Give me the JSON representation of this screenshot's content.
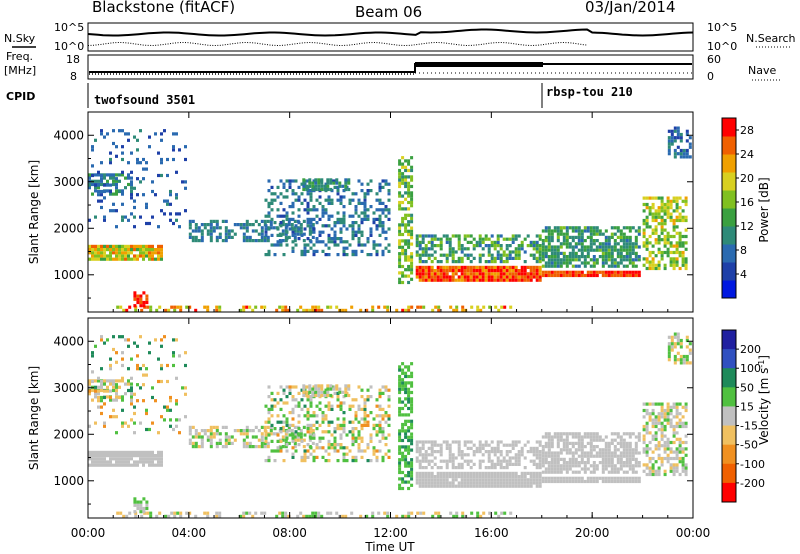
{
  "header": {
    "title": "Blackstone (fitACF)",
    "beam": "Beam 06",
    "date": "03/Jan/2014"
  },
  "noise_panel": {
    "left_label": "N.Sky",
    "right_label": "N.Search",
    "left_ticks": [
      "10^5",
      "10^0"
    ],
    "right_ticks": [
      "10^5",
      "10^0"
    ]
  },
  "freq_panel": {
    "left_label_1": "Freq.",
    "left_label_2": "[MHz]",
    "right_label": "Nave",
    "left_ticks": [
      "18",
      "8"
    ],
    "right_ticks": [
      "60",
      "0"
    ]
  },
  "cpid_panel": {
    "label": "CPID",
    "modes": [
      {
        "name": "twofsound 3501",
        "start_hour": 0
      },
      {
        "name": "rbsp-tou 210",
        "start_hour": 18
      }
    ]
  },
  "x_axis": {
    "label": "Time UT",
    "ticks": [
      "00:00",
      "04:00",
      "08:00",
      "12:00",
      "16:00",
      "20:00",
      "00:00"
    ]
  },
  "colors": {
    "power": [
      "#0018e0",
      "#1e40a8",
      "#2a6ab0",
      "#2e8a78",
      "#3aa040",
      "#80c020",
      "#d8d020",
      "#f0a000",
      "#f06000",
      "#ff0000"
    ],
    "velocity": [
      "#2020a0",
      "#3050c0",
      "#1e8a5a",
      "#50c040",
      "#c0c0c0",
      "#f0c060",
      "#f09020",
      "#f06000",
      "#ff0000"
    ]
  },
  "chart_data": [
    {
      "type": "heatmap",
      "name": "power",
      "ylabel": "Slant Range [km]",
      "yticks": [
        1000,
        2000,
        3000,
        4000
      ],
      "ylim": [
        200,
        4500
      ],
      "xlim": [
        0,
        24
      ],
      "colorbar": {
        "label": "Power [dB]",
        "ticks": [
          "4",
          "8",
          "12",
          "16",
          "20",
          "24",
          "28"
        ],
        "range": [
          0,
          30
        ]
      }
    },
    {
      "type": "heatmap",
      "name": "velocity",
      "ylabel": "Slant Range [km]",
      "yticks": [
        1000,
        2000,
        3000,
        4000
      ],
      "ylim": [
        200,
        4500
      ],
      "xlim": [
        0,
        24
      ],
      "colorbar": {
        "label": "Velocity [m s^-1]",
        "ticks": [
          "200",
          "100",
          "50",
          "15",
          "-15",
          "-50",
          "-100",
          "-200"
        ]
      }
    }
  ]
}
